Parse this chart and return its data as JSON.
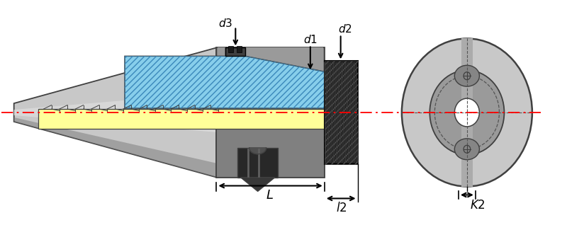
{
  "background": "#ffffff",
  "colors": {
    "blue_fill": "#87CEEB",
    "yellow_fill": "#FFFF99",
    "dark_gray": "#404040",
    "medium_gray": "#808080",
    "light_gray": "#C8C8C8",
    "black": "#000000",
    "red": "#FF0000"
  },
  "labels": {
    "d1": "$d1$",
    "d2": "$d2$",
    "d3": "$d3$",
    "L": "$L$",
    "l2": "$l2$",
    "K2": "$K2$"
  }
}
